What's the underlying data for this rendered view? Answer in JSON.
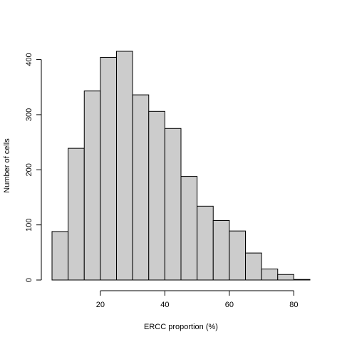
{
  "chart_data": {
    "type": "bar",
    "subtype": "histogram",
    "title": "",
    "xlabel": "ERCC proportion (%)",
    "ylabel": "Number of cells",
    "bin_edges": [
      5,
      10,
      15,
      20,
      25,
      30,
      35,
      40,
      45,
      50,
      55,
      60,
      65,
      70,
      75,
      80,
      85
    ],
    "values": [
      88,
      239,
      343,
      404,
      415,
      336,
      306,
      275,
      188,
      134,
      108,
      89,
      49,
      20,
      10,
      1
    ],
    "xlim": [
      5,
      85
    ],
    "ylim": [
      0,
      415
    ],
    "x_ticks": [
      20,
      40,
      60,
      80
    ],
    "y_ticks": [
      0,
      100,
      200,
      300,
      400
    ],
    "bar_color": "#cccccc",
    "border_color": "#000000",
    "grid": false,
    "legend": "none"
  }
}
